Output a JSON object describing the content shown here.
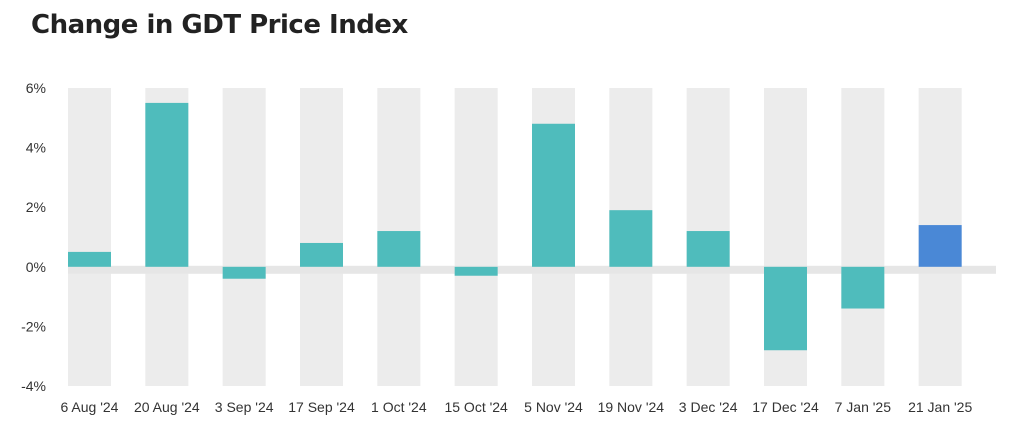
{
  "chart_data": {
    "type": "bar",
    "title": "Change in GDT Price Index",
    "xlabel": "",
    "ylabel": "",
    "categories": [
      "6 Aug '24",
      "20 Aug '24",
      "3 Sep '24",
      "17 Sep '24",
      "1 Oct '24",
      "15 Oct '24",
      "5 Nov '24",
      "19 Nov '24",
      "3 Dec '24",
      "17 Dec '24",
      "7 Jan '25",
      "21 Jan '25"
    ],
    "values": [
      0.5,
      5.5,
      -0.4,
      0.8,
      1.2,
      -0.3,
      4.8,
      1.9,
      1.2,
      -2.8,
      -1.4,
      1.4
    ],
    "ylim": [
      -4,
      6
    ],
    "yticks": [
      6,
      4,
      2,
      0,
      -2,
      -4
    ],
    "ytick_labels": [
      "6%",
      "4%",
      "2%",
      "0%",
      "-2%",
      "-4%"
    ],
    "grid": false,
    "colors": {
      "bar": "#4fbcbc",
      "highlight": "#4a88d6",
      "band": "#ececec",
      "zero_band": "#e6e6e6"
    },
    "highlight_index": 11
  }
}
